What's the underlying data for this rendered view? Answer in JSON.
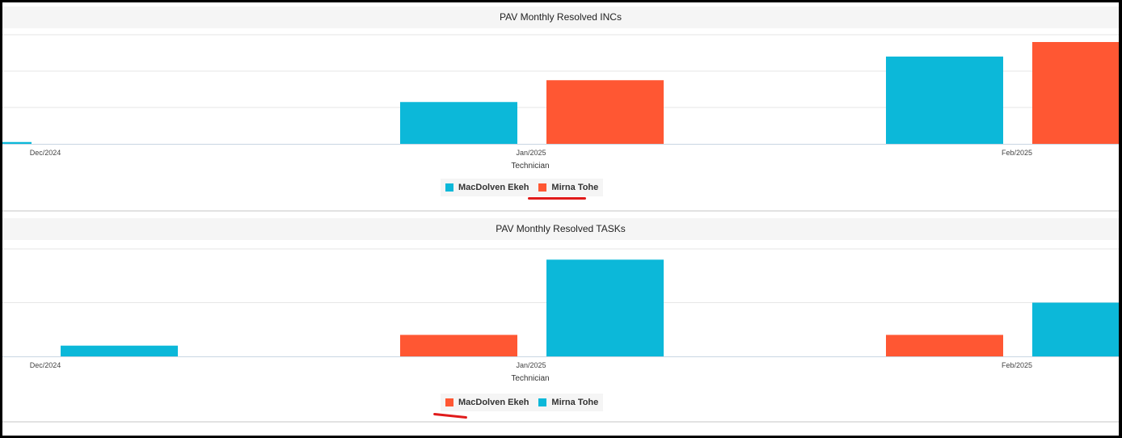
{
  "colors": {
    "cyan": "#0cb8d9",
    "orange": "#ff5733",
    "grid": "#e6e6e6",
    "axis": "#c9d6e3"
  },
  "chart_data": [
    {
      "type": "bar",
      "title": "PAV Monthly Resolved INCs",
      "xlabel": "Technician",
      "categories": [
        "Dec/2024",
        "Jan/2025",
        "Feb/2025"
      ],
      "ylim": [
        0,
        60
      ],
      "grid": true,
      "y_tick_labels_shown": false,
      "legend_position": "bottom",
      "series": [
        {
          "name": "MacDolven Ekeh",
          "color": "#0cb8d9",
          "values": [
            1,
            23,
            48
          ]
        },
        {
          "name": "Mirna Tohe",
          "color": "#ff5733",
          "values": [
            0,
            35,
            56
          ]
        }
      ]
    },
    {
      "type": "bar",
      "title": "PAV Monthly Resolved TASKs",
      "xlabel": "Technician",
      "categories": [
        "Dec/2024",
        "Jan/2025",
        "Feb/2025"
      ],
      "ylim": [
        0,
        10
      ],
      "grid": true,
      "y_tick_labels_shown": false,
      "legend_position": "bottom",
      "series": [
        {
          "name": "MacDolven Ekeh",
          "color": "#ff5733",
          "values": [
            0,
            2,
            2
          ]
        },
        {
          "name": "Mirna Tohe",
          "color": "#0cb8d9",
          "values": [
            1,
            9,
            5
          ]
        }
      ]
    }
  ]
}
